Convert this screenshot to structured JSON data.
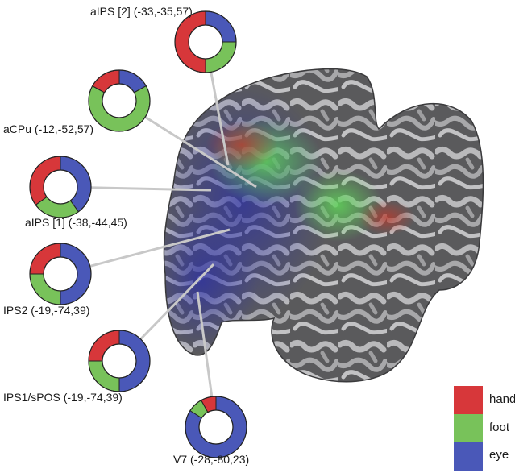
{
  "colors": {
    "hand": "#d7373a",
    "foot": "#78c25a",
    "eye": "#4a58b8",
    "connector": "#c8c8c8"
  },
  "legend": [
    {
      "key": "hand",
      "label": "hand"
    },
    {
      "key": "foot",
      "label": "foot"
    },
    {
      "key": "eye",
      "label": "eye"
    }
  ],
  "regions": [
    {
      "id": "aips2",
      "label": "aIPS [2] (-33,-35,57)",
      "hand": 0.5,
      "foot": 0.25,
      "eye": 0.25
    },
    {
      "id": "acpu",
      "label": "aCPu (-12,-52,57)",
      "hand": 0.17,
      "foot": 0.66,
      "eye": 0.17
    },
    {
      "id": "aips1",
      "label": "aIPS [1] (-38,-44,45)",
      "hand": 0.35,
      "foot": 0.25,
      "eye": 0.4
    },
    {
      "id": "ips2",
      "label": "IPS2 (-19,-74,39)",
      "hand": 0.25,
      "foot": 0.25,
      "eye": 0.5
    },
    {
      "id": "ips1spos",
      "label": "IPS1/sPOS (-19,-74,39)",
      "hand": 0.25,
      "foot": 0.25,
      "eye": 0.5
    },
    {
      "id": "v7",
      "label": "V7 (-28,-80,23)",
      "hand": 0.08,
      "foot": 0.08,
      "eye": 0.84
    }
  ],
  "brain_image": "inflated-cortical-surface-map"
}
